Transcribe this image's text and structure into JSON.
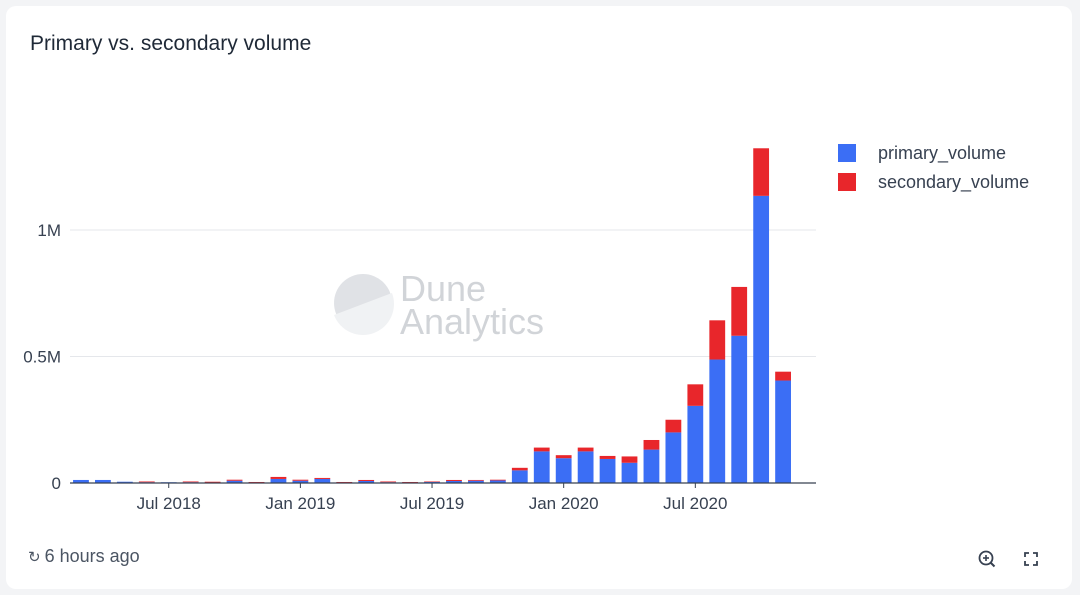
{
  "title": "Primary vs. secondary volume",
  "footer": {
    "updated": "6 hours ago",
    "refresh_icon": "refresh-icon",
    "zoom_icon": "zoom-in-icon",
    "fullscreen_icon": "fullscreen-icon"
  },
  "watermark": {
    "line1": "Dune",
    "line2": "Analytics"
  },
  "colors": {
    "primary": "#3b6ef5",
    "secondary": "#e8262b",
    "grid": "#e5e7eb",
    "text": "#374151"
  },
  "chart_data": {
    "type": "bar",
    "stacked": true,
    "x": [
      "2018-03",
      "2018-04",
      "2018-05",
      "2018-06",
      "2018-07",
      "2018-08",
      "2018-09",
      "2018-10",
      "2018-11",
      "2018-12",
      "2019-01",
      "2019-02",
      "2019-03",
      "2019-04",
      "2019-05",
      "2019-06",
      "2019-07",
      "2019-08",
      "2019-09",
      "2019-10",
      "2019-11",
      "2019-12",
      "2020-01",
      "2020-02",
      "2020-03",
      "2020-04",
      "2020-05",
      "2020-06",
      "2020-07",
      "2020-08",
      "2020-09",
      "2020-10",
      "2020-11",
      "2020-12"
    ],
    "series": [
      {
        "name": "primary_volume",
        "values": [
          12000,
          12000,
          5000,
          3000,
          3000,
          3000,
          2000,
          9000,
          3000,
          16000,
          9000,
          16000,
          3000,
          8000,
          3000,
          3000,
          5000,
          8000,
          9000,
          10000,
          50000,
          125000,
          98000,
          125000,
          95000,
          80000,
          132000,
          200000,
          305000,
          488000,
          582000,
          1135000,
          405000,
          0
        ]
      },
      {
        "name": "secondary_volume",
        "values": [
          0,
          0,
          0,
          3000,
          0,
          3000,
          3000,
          4000,
          1000,
          8000,
          4000,
          4000,
          1000,
          4000,
          3000,
          1000,
          1000,
          4000,
          3000,
          3000,
          10000,
          15000,
          12000,
          15000,
          12000,
          25000,
          38000,
          50000,
          85000,
          155000,
          193000,
          188000,
          35000,
          0
        ]
      }
    ],
    "xticks": [
      "Jul 2018",
      "Jan 2019",
      "Jul 2019",
      "Jan 2020",
      "Jul 2020"
    ],
    "yticks": [
      "0",
      "0.5M",
      "1M"
    ],
    "ylim": [
      0,
      1400000
    ],
    "grid": true,
    "legend": "top-right"
  }
}
